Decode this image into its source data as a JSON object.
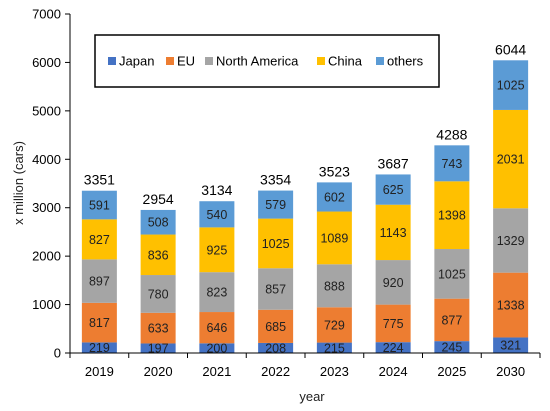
{
  "chart_data": {
    "type": "bar",
    "stacked": true,
    "xlabel": "year",
    "ylabel": "x million (cars)",
    "ylim": [
      0,
      7000
    ],
    "yticks": [
      0,
      1000,
      2000,
      3000,
      4000,
      5000,
      6000,
      7000
    ],
    "categories": [
      "2019",
      "2020",
      "2021",
      "2022",
      "2023",
      "2024",
      "2025",
      "2030"
    ],
    "totals": [
      3351,
      2954,
      3134,
      3354,
      3523,
      3687,
      4288,
      6044
    ],
    "legend_position": "top",
    "series": [
      {
        "name": "Japan",
        "color": "#4472C4",
        "values": [
          219,
          197,
          200,
          208,
          215,
          224,
          245,
          321
        ]
      },
      {
        "name": "EU",
        "color": "#ED7D31",
        "values": [
          817,
          633,
          646,
          685,
          729,
          775,
          877,
          1338
        ]
      },
      {
        "name": "North America",
        "color": "#A5A5A5",
        "values": [
          897,
          780,
          823,
          857,
          888,
          920,
          1025,
          1329
        ]
      },
      {
        "name": "China",
        "color": "#FFC000",
        "values": [
          827,
          836,
          925,
          1025,
          1089,
          1143,
          1398,
          2031
        ]
      },
      {
        "name": "others",
        "color": "#5B9BD5",
        "values": [
          591,
          508,
          540,
          579,
          602,
          625,
          743,
          1025
        ]
      }
    ]
  }
}
